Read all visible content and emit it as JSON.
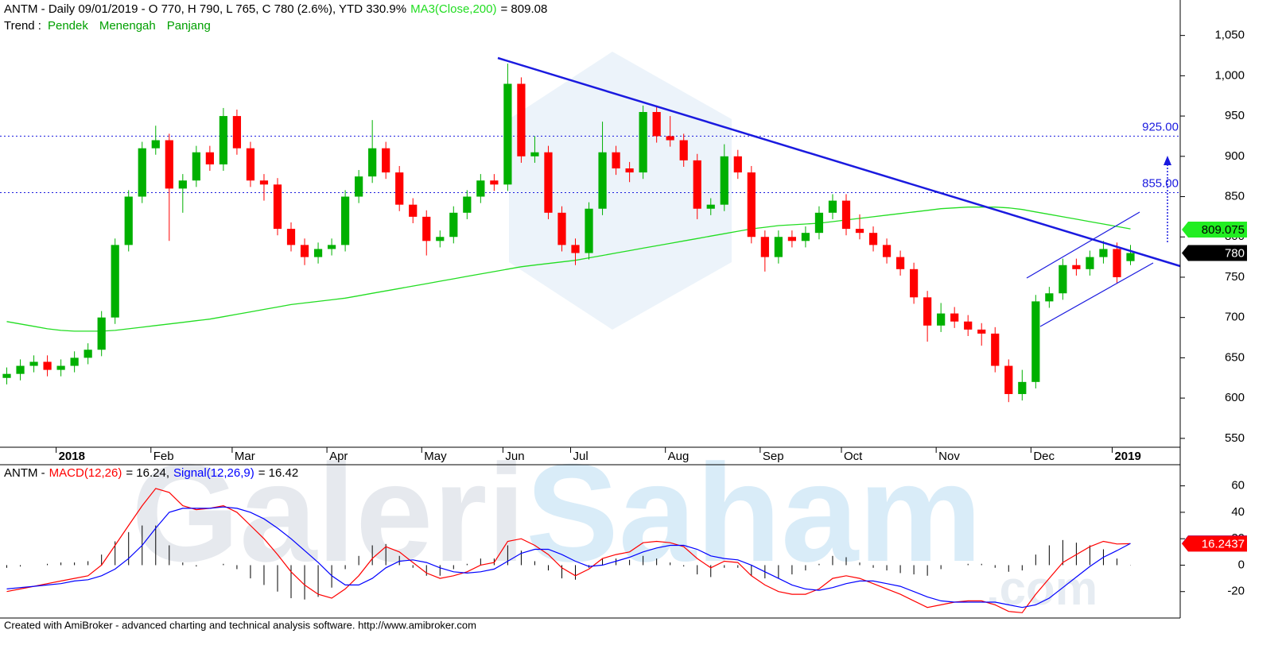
{
  "chart_data": [
    {
      "type": "candlestick",
      "title": "ANTM - Daily 09/01/2019 - O 770, H 790, L 765, C 780 (2.6%), YTD 330.9%",
      "ma_label": "MA3(Close,200)",
      "ma_text": "= 809.08",
      "trend_label": "Trend :",
      "trend_items": [
        "Pendek",
        "Menengah",
        "Panjang"
      ],
      "trend_color": "#00a000",
      "watermark": [
        "Galeri",
        "Saham",
        ".com"
      ],
      "categories": [
        null,
        null,
        null,
        null,
        "2018",
        null,
        null,
        null,
        null,
        null,
        null,
        "Feb",
        null,
        null,
        null,
        null,
        null,
        "Mar",
        null,
        null,
        null,
        null,
        null,
        null,
        "Apr",
        null,
        null,
        null,
        null,
        null,
        null,
        "May",
        null,
        null,
        null,
        null,
        null,
        "Jun",
        null,
        null,
        null,
        null,
        "Jul",
        null,
        null,
        null,
        null,
        null,
        null,
        "Aug",
        null,
        null,
        null,
        null,
        null,
        null,
        "Sep",
        null,
        null,
        null,
        null,
        null,
        "Oct",
        null,
        null,
        null,
        null,
        null,
        null,
        "Nov",
        null,
        null,
        null,
        null,
        null,
        null,
        "Dec",
        null,
        null,
        null,
        null,
        null,
        "2019",
        null
      ],
      "open": [
        625,
        630,
        640,
        645,
        635,
        640,
        650,
        660,
        700,
        790,
        850,
        910,
        920,
        860,
        870,
        905,
        890,
        950,
        910,
        870,
        865,
        810,
        790,
        775,
        785,
        790,
        850,
        875,
        910,
        880,
        840,
        825,
        795,
        800,
        830,
        850,
        870,
        865,
        990,
        900,
        905,
        830,
        790,
        780,
        835,
        905,
        885,
        880,
        955,
        925,
        920,
        895,
        835,
        840,
        900,
        880,
        800,
        775,
        800,
        795,
        805,
        830,
        845,
        810,
        805,
        790,
        775,
        760,
        725,
        690,
        705,
        695,
        685,
        680,
        640,
        605,
        620,
        720,
        730,
        765,
        760,
        775,
        785,
        770
      ],
      "high": [
        638,
        648,
        653,
        653,
        648,
        658,
        668,
        708,
        798,
        858,
        918,
        938,
        928,
        878,
        913,
        913,
        960,
        958,
        918,
        878,
        873,
        818,
        798,
        793,
        798,
        858,
        883,
        945,
        918,
        888,
        848,
        833,
        808,
        838,
        858,
        878,
        878,
        1015,
        998,
        925,
        913,
        838,
        798,
        843,
        943,
        913,
        893,
        963,
        963,
        950,
        928,
        903,
        848,
        915,
        908,
        888,
        808,
        808,
        808,
        813,
        838,
        853,
        853,
        828,
        813,
        798,
        783,
        768,
        733,
        718,
        713,
        703,
        693,
        688,
        648,
        635,
        728,
        738,
        773,
        773,
        783,
        795,
        793,
        790
      ],
      "low": [
        617,
        622,
        632,
        627,
        627,
        632,
        642,
        652,
        692,
        782,
        842,
        902,
        795,
        830,
        862,
        882,
        882,
        902,
        862,
        845,
        802,
        782,
        765,
        767,
        777,
        782,
        842,
        867,
        872,
        832,
        817,
        777,
        787,
        792,
        822,
        842,
        857,
        857,
        892,
        892,
        822,
        782,
        765,
        772,
        827,
        877,
        868,
        872,
        917,
        912,
        887,
        822,
        827,
        832,
        872,
        792,
        757,
        767,
        787,
        787,
        797,
        822,
        802,
        797,
        782,
        767,
        752,
        717,
        670,
        682,
        687,
        677,
        665,
        632,
        595,
        597,
        612,
        712,
        722,
        752,
        752,
        767,
        742,
        765
      ],
      "close": [
        630,
        640,
        645,
        635,
        640,
        650,
        660,
        700,
        790,
        850,
        910,
        920,
        860,
        870,
        905,
        890,
        950,
        910,
        870,
        865,
        810,
        790,
        775,
        785,
        790,
        850,
        875,
        910,
        880,
        840,
        825,
        795,
        800,
        830,
        850,
        870,
        865,
        990,
        900,
        905,
        830,
        790,
        780,
        835,
        905,
        885,
        880,
        955,
        925,
        920,
        895,
        835,
        840,
        900,
        880,
        800,
        775,
        800,
        795,
        805,
        830,
        845,
        810,
        805,
        790,
        775,
        760,
        725,
        690,
        705,
        695,
        685,
        680,
        640,
        605,
        620,
        720,
        730,
        765,
        760,
        775,
        785,
        750,
        780
      ],
      "up_color": "#00b000",
      "down_color": "#ff0000",
      "ma": {
        "color": "#22dd22",
        "values": [
          695,
          692,
          689,
          686,
          684,
          683,
          683,
          683,
          684,
          686,
          688,
          690,
          692,
          694,
          696,
          698,
          701,
          704,
          707,
          710,
          713,
          716,
          718,
          720,
          722,
          724,
          727,
          730,
          733,
          736,
          739,
          742,
          745,
          748,
          751,
          754,
          757,
          760,
          763,
          765,
          767,
          769,
          771,
          774,
          777,
          780,
          783,
          786,
          789,
          792,
          795,
          798,
          801,
          804,
          807,
          810,
          812,
          814,
          815,
          816,
          817,
          819,
          821,
          823,
          825,
          827,
          829,
          831,
          833,
          835,
          836,
          837,
          837,
          837,
          836,
          834,
          831,
          828,
          825,
          822,
          819,
          816,
          813,
          810
        ]
      },
      "ylim": [
        539,
        1094
      ],
      "yticks": [
        {
          "value": 1050,
          "label": "1,050"
        },
        {
          "value": 1000,
          "label": "1,000"
        },
        950,
        900,
        850,
        800,
        750,
        700,
        650,
        600,
        550
      ],
      "levels": [
        {
          "value": 925,
          "label": "925.00"
        },
        {
          "value": 855,
          "label": "855.00"
        }
      ],
      "level_color": "#1a1adf",
      "markers": [
        {
          "value": 809.075,
          "color": "#22ee22",
          "text_color": "#000000"
        },
        {
          "value": 780,
          "color": "#000000",
          "text_color": "#ffffff"
        }
      ]
    },
    {
      "type": "line",
      "prefix": "ANTM -",
      "series": [
        {
          "name": "MACD(12,26)",
          "legend_value": "= 16.24,",
          "color": "#ff0000",
          "values": [
            -20,
            -18,
            -16,
            -14,
            -12,
            -10,
            -8,
            0,
            15,
            30,
            45,
            58,
            55,
            45,
            42,
            43,
            45,
            40,
            30,
            20,
            8,
            -5,
            -15,
            -22,
            -25,
            -18,
            -8,
            5,
            14,
            10,
            2,
            -6,
            -10,
            -8,
            -5,
            0,
            2,
            18,
            20,
            15,
            8,
            -2,
            -8,
            -3,
            5,
            8,
            10,
            17,
            18,
            17,
            14,
            5,
            -2,
            3,
            2,
            -8,
            -15,
            -20,
            -22,
            -22,
            -18,
            -10,
            -8,
            -10,
            -14,
            -18,
            -22,
            -27,
            -32,
            -30,
            -28,
            -27,
            -27,
            -30,
            -35,
            -36,
            -22,
            -10,
            2,
            8,
            14,
            18,
            16,
            16.24
          ]
        },
        {
          "name": "Signal(12,26,9)",
          "legend_value": "= 16.42",
          "color": "#0000ff",
          "values": [
            -18,
            -17,
            -16,
            -15,
            -14,
            -12,
            -11,
            -8,
            -3,
            5,
            15,
            28,
            40,
            43,
            43,
            43,
            44,
            43,
            40,
            35,
            28,
            20,
            11,
            2,
            -8,
            -15,
            -15,
            -10,
            -2,
            3,
            4,
            2,
            -2,
            -5,
            -6,
            -5,
            -3,
            3,
            9,
            12,
            12,
            8,
            3,
            -1,
            0,
            3,
            6,
            10,
            13,
            15,
            15,
            12,
            7,
            5,
            4,
            0,
            -5,
            -10,
            -15,
            -18,
            -19,
            -17,
            -14,
            -12,
            -12,
            -14,
            -16,
            -20,
            -24,
            -27,
            -28,
            -28,
            -28,
            -28,
            -30,
            -32,
            -30,
            -25,
            -17,
            -9,
            -1,
            6,
            11,
            16.42
          ]
        }
      ],
      "histogram_color": "#000000",
      "histogram": [
        -2,
        -1,
        0,
        1,
        2,
        2,
        3,
        8,
        18,
        25,
        30,
        30,
        15,
        2,
        -1,
        0,
        1,
        -3,
        -10,
        -15,
        -20,
        -25,
        -26,
        -24,
        -17,
        -3,
        7,
        15,
        16,
        7,
        -2,
        -8,
        -8,
        -3,
        1,
        5,
        5,
        15,
        11,
        3,
        -4,
        -10,
        -11,
        -2,
        5,
        5,
        4,
        7,
        5,
        2,
        -1,
        -7,
        -9,
        -2,
        -2,
        -8,
        -10,
        -10,
        -7,
        -4,
        1,
        7,
        6,
        2,
        -2,
        -4,
        -6,
        -7,
        -8,
        -3,
        0,
        1,
        1,
        -2,
        -5,
        -4,
        8,
        15,
        19,
        17,
        15,
        12,
        5,
        -0.18
      ],
      "ylim": [
        -40,
        76
      ],
      "yticks": [
        60,
        40,
        20,
        0,
        -20
      ],
      "markers": [
        {
          "value": 16.4189,
          "color": "#0000ff",
          "text_color": "#ffffff"
        },
        {
          "value": 16.2437,
          "color": "#ff0000",
          "text_color": "#ffffff"
        }
      ]
    }
  ],
  "footer": "Created with AmiBroker - advanced charting and technical analysis software. http://www.amibroker.com"
}
